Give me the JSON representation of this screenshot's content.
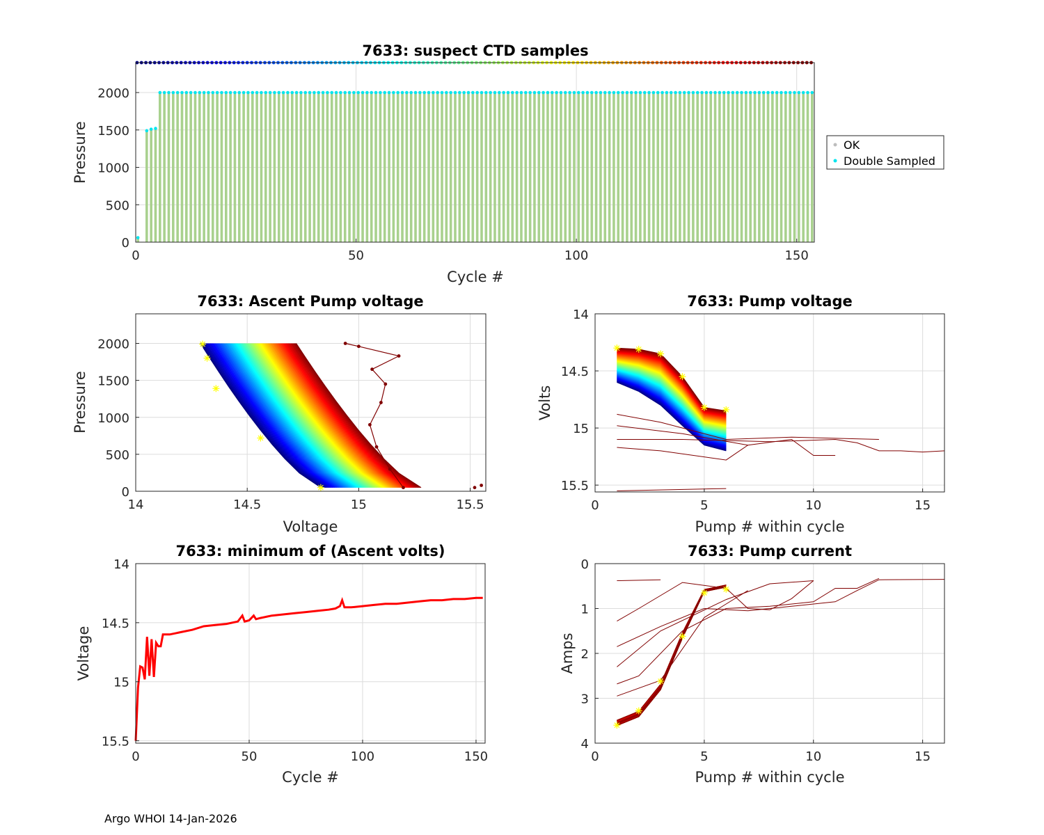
{
  "figure": {
    "footer": "Argo WHOI 14-Jan-2026"
  },
  "colors": {
    "ok": "#bdbdbd",
    "double": "#00e5ee",
    "bars": "#a9d18e",
    "min_line": "#ff0000",
    "marker": "#ffff00"
  },
  "chart_data": [
    {
      "id": "suspect",
      "type": "scatter",
      "title": "7633: suspect CTD samples",
      "xlabel": "Cycle #",
      "ylabel": "Pressure",
      "xlim": [
        0,
        154
      ],
      "ylim": [
        2400,
        0
      ],
      "xticks": [
        "0",
        "50",
        "100",
        "150"
      ],
      "yticks": [
        "0",
        "500",
        "1000",
        "1500",
        "2000"
      ],
      "grid": true,
      "n_cycles": 154,
      "profile_top": 0,
      "profile_bottom": 2000,
      "first_profiles": [
        {
          "cycle": 0,
          "bottom": 60
        },
        {
          "cycle": 2,
          "bottom": 1490
        },
        {
          "cycle": 3,
          "bottom": 1510
        },
        {
          "cycle": 4,
          "bottom": 1520
        }
      ],
      "colorbar_pressure": 2400,
      "legend": {
        "position": "outside-right",
        "items": [
          "OK",
          "Double Sampled"
        ]
      }
    },
    {
      "id": "ascent_pump",
      "type": "line",
      "title": "7633: Ascent Pump voltage",
      "xlabel": "Voltage",
      "ylabel": "Pressure",
      "xlim": [
        14,
        15.57
      ],
      "ylim": [
        2400,
        0
      ],
      "xticks": [
        "14",
        "14.5",
        "15",
        "15.5"
      ],
      "yticks": [
        "0",
        "500",
        "1000",
        "1500",
        "2000"
      ],
      "grid": true,
      "series_note": "one curve per cycle, colored by cycle number (jet colormap)",
      "surface_voltage_range": [
        14.83,
        15.28
      ],
      "deep_voltage_range": [
        14.29,
        14.72
      ],
      "profile_top": 50,
      "profile_bottom": 2000,
      "outlier_surface": [
        15.52,
        15.55
      ],
      "outlier_profile": [
        [
          15.2,
          50
        ],
        [
          15.14,
          300
        ],
        [
          15.08,
          600
        ],
        [
          15.05,
          900
        ],
        [
          15.1,
          1200
        ],
        [
          15.12,
          1450
        ],
        [
          15.06,
          1650
        ],
        [
          15.18,
          1830
        ],
        [
          15.0,
          1960
        ],
        [
          14.94,
          2000
        ]
      ],
      "yellow_markers": [
        [
          14.83,
          50
        ],
        [
          14.56,
          720
        ],
        [
          14.36,
          1390
        ],
        [
          14.32,
          1800
        ],
        [
          14.3,
          1990
        ]
      ]
    },
    {
      "id": "pump_voltage",
      "type": "line",
      "title": "7633: Pump voltage",
      "xlabel": "Pump # within cycle",
      "ylabel": "Volts",
      "xlim": [
        0,
        16
      ],
      "ylim": [
        14,
        15.56
      ],
      "xticks": [
        "0",
        "5",
        "10",
        "15"
      ],
      "yticks": [
        "14",
        "14.5",
        "15",
        "15.5"
      ],
      "grid": true,
      "series_note": "one curve per cycle, colored by cycle number",
      "newest_values": [
        14.3,
        14.31,
        14.35,
        14.55,
        14.82,
        14.85
      ],
      "oldest_values": [
        14.6,
        14.68,
        14.8,
        14.98,
        15.15,
        15.2
      ],
      "outlier_lines": [
        [
          [
            1,
            15.55
          ],
          [
            6,
            15.53
          ]
        ],
        [
          [
            1,
            15.17
          ],
          [
            3,
            15.2
          ],
          [
            6,
            15.28
          ],
          [
            7,
            15.15
          ],
          [
            9,
            15.1
          ],
          [
            10,
            15.24
          ],
          [
            11,
            15.24
          ]
        ],
        [
          [
            1,
            15.1
          ],
          [
            4,
            15.1
          ],
          [
            8,
            15.12
          ],
          [
            11,
            15.1
          ],
          [
            12,
            15.13
          ],
          [
            13,
            15.2
          ],
          [
            14,
            15.2
          ],
          [
            15,
            15.21
          ],
          [
            16,
            15.2
          ]
        ],
        [
          [
            1,
            14.88
          ],
          [
            3,
            14.95
          ],
          [
            6,
            15.1
          ],
          [
            9,
            15.08
          ],
          [
            13,
            15.1
          ]
        ],
        [
          [
            1,
            14.98
          ],
          [
            4,
            15.05
          ],
          [
            7,
            15.15
          ]
        ]
      ],
      "yellow_markers": [
        [
          1,
          14.3
        ],
        [
          2,
          14.31
        ],
        [
          3,
          14.35
        ],
        [
          4,
          14.55
        ],
        [
          5,
          14.82
        ],
        [
          6,
          14.84
        ]
      ]
    },
    {
      "id": "min_volts",
      "type": "line",
      "title": "7633: minimum of (Ascent volts)",
      "xlabel": "Cycle #",
      "ylabel": "Voltage",
      "xlim": [
        0,
        154
      ],
      "ylim": [
        14,
        15.52
      ],
      "xticks": [
        "0",
        "50",
        "100",
        "150"
      ],
      "yticks": [
        "14",
        "14.5",
        "15",
        "15.5"
      ],
      "grid": true,
      "x": [
        0,
        1,
        2,
        3,
        4,
        5,
        6,
        7,
        8,
        9,
        10,
        11,
        12,
        15,
        20,
        25,
        30,
        35,
        40,
        45,
        47,
        48,
        50,
        52,
        53,
        55,
        60,
        65,
        70,
        75,
        80,
        85,
        88,
        90,
        91,
        92,
        95,
        100,
        105,
        110,
        115,
        120,
        125,
        130,
        135,
        140,
        145,
        150,
        153
      ],
      "y": [
        15.5,
        15.05,
        14.87,
        14.88,
        14.98,
        14.62,
        14.95,
        14.64,
        14.96,
        14.67,
        14.7,
        14.7,
        14.6,
        14.6,
        14.58,
        14.56,
        14.53,
        14.52,
        14.51,
        14.49,
        14.44,
        14.49,
        14.48,
        14.44,
        14.47,
        14.46,
        14.44,
        14.43,
        14.42,
        14.41,
        14.4,
        14.39,
        14.38,
        14.36,
        14.31,
        14.37,
        14.37,
        14.36,
        14.35,
        14.34,
        14.34,
        14.33,
        14.32,
        14.31,
        14.31,
        14.3,
        14.3,
        14.29,
        14.29
      ]
    },
    {
      "id": "pump_current",
      "type": "line",
      "title": "7633: Pump current",
      "xlabel": "Pump # within cycle",
      "ylabel": "Amps",
      "xlim": [
        0,
        16
      ],
      "ylim": [
        0,
        4
      ],
      "xticks": [
        "0",
        "5",
        "10",
        "15"
      ],
      "yticks": [
        "0",
        "1",
        "2",
        "3",
        "4"
      ],
      "grid": true,
      "series_note": "one curve per cycle, colored by cycle number",
      "main_values": [
        3.55,
        3.35,
        2.75,
        1.6,
        0.6,
        0.5
      ],
      "outlier_lines": [
        [
          [
            1,
            0.38
          ],
          [
            3,
            0.36
          ]
        ],
        [
          [
            1,
            1.28
          ],
          [
            2,
            1.0
          ],
          [
            4,
            0.42
          ],
          [
            6,
            0.55
          ],
          [
            7,
            1.0
          ],
          [
            8,
            1.03
          ],
          [
            9,
            0.78
          ],
          [
            10,
            0.38
          ]
        ],
        [
          [
            1,
            1.85
          ],
          [
            3,
            1.4
          ],
          [
            5,
            1.0
          ],
          [
            7,
            1.05
          ],
          [
            9,
            0.95
          ],
          [
            11,
            0.85
          ],
          [
            12,
            0.6
          ],
          [
            13,
            0.36
          ],
          [
            16,
            0.35
          ]
        ],
        [
          [
            1,
            2.3
          ],
          [
            3,
            1.5
          ],
          [
            6,
            0.8
          ],
          [
            8,
            0.45
          ],
          [
            10,
            0.38
          ]
        ],
        [
          [
            1,
            2.68
          ],
          [
            2,
            2.5
          ],
          [
            4,
            1.5
          ],
          [
            6,
            1.0
          ],
          [
            8,
            0.95
          ],
          [
            10,
            0.85
          ],
          [
            11,
            0.55
          ],
          [
            12,
            0.55
          ],
          [
            13,
            0.33
          ]
        ],
        [
          [
            1,
            2.95
          ],
          [
            3,
            2.6
          ],
          [
            5,
            1.2
          ],
          [
            6,
            0.9
          ],
          [
            7,
            0.6
          ]
        ]
      ],
      "yellow_markers": [
        [
          1,
          3.6
        ],
        [
          2,
          3.28
        ],
        [
          3,
          2.62
        ],
        [
          4,
          1.62
        ],
        [
          5,
          0.65
        ],
        [
          6,
          0.57
        ]
      ]
    }
  ]
}
